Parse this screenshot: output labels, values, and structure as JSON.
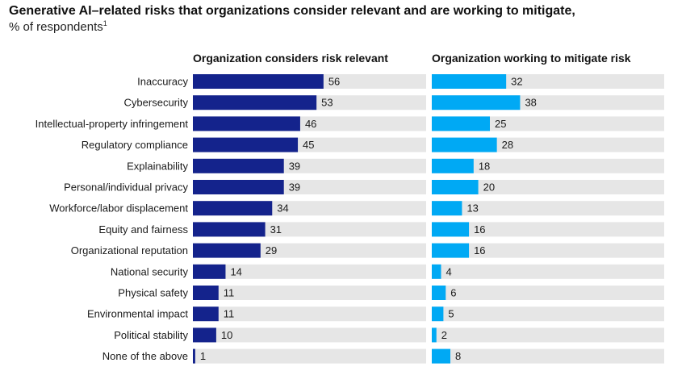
{
  "title": "Generative AI–related risks that organizations consider relevant and are working to mitigate,",
  "subtitle": "% of respondents",
  "footnote_marker": "1",
  "colors": {
    "relevant": "#14238c",
    "mitigate": "#00a9f4",
    "track": "#e6e6e6"
  },
  "chart_data": {
    "type": "bar",
    "orientation": "horizontal",
    "title": "Generative AI–related risks that organizations consider relevant and are working to mitigate, % of respondents",
    "categories": [
      "Inaccuracy",
      "Cybersecurity",
      "Intellectual-property infringement",
      "Regulatory compliance",
      "Explainability",
      "Personal/individual privacy",
      "Workforce/labor displacement",
      "Equity and fairness",
      "Organizational reputation",
      "National security",
      "Physical safety",
      "Environmental impact",
      "Political stability",
      "None of the above"
    ],
    "series": [
      {
        "name": "Organization considers risk relevant",
        "values": [
          56,
          53,
          46,
          45,
          39,
          39,
          34,
          31,
          29,
          14,
          11,
          11,
          10,
          1
        ]
      },
      {
        "name": "Organization working to mitigate risk",
        "values": [
          32,
          38,
          25,
          28,
          18,
          20,
          13,
          16,
          16,
          4,
          6,
          5,
          2,
          8
        ]
      }
    ],
    "xlim": [
      0,
      100
    ],
    "grid": false,
    "legend": "panel-titles"
  }
}
